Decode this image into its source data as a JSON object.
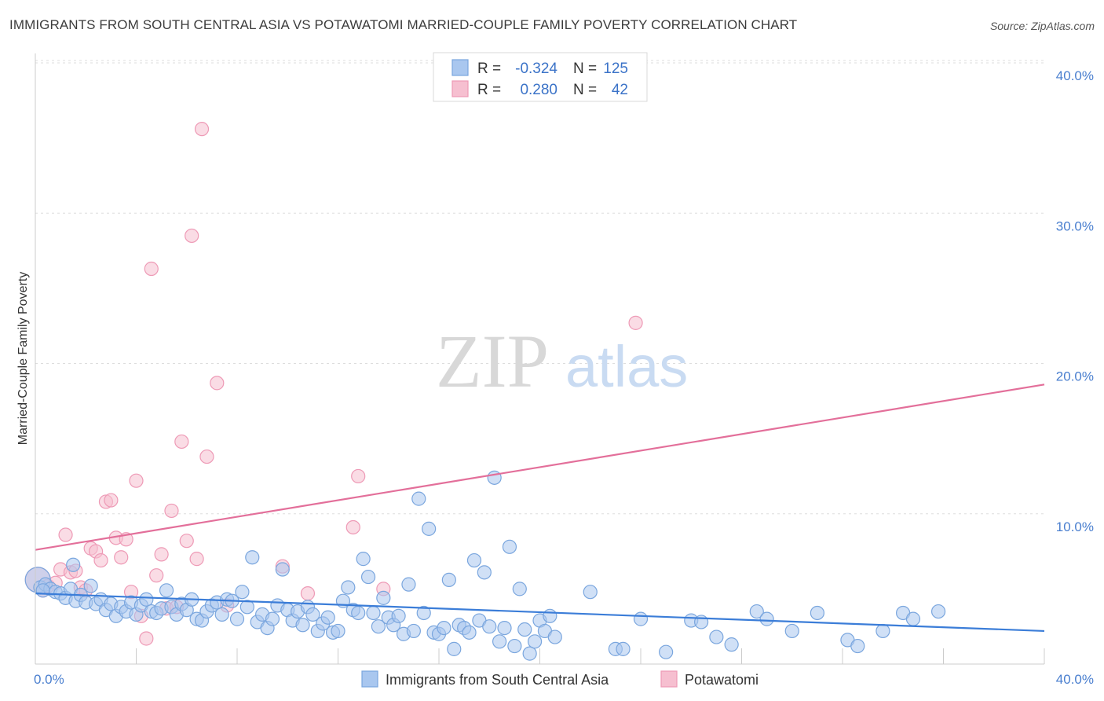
{
  "title": "IMMIGRANTS FROM SOUTH CENTRAL ASIA VS POTAWATOMI MARRIED-COUPLE FAMILY POVERTY CORRELATION CHART",
  "source": "Source: ZipAtlas.com",
  "watermark": {
    "zip": "ZIP",
    "atlas": "atlas"
  },
  "colors": {
    "blue_fill": "#a9c7ef",
    "blue_stroke": "#7aa6de",
    "blue_line": "#3b7dd8",
    "pink_fill": "#f6bfd0",
    "pink_stroke": "#ee9ab6",
    "pink_line": "#e36f9a",
    "grid": "#dddddd",
    "tick_text": "#4a7fcf"
  },
  "stats_legend": [
    {
      "r_label": "R =",
      "r_value": "-0.324",
      "n_label": "N =",
      "n_value": "125",
      "color": "blue"
    },
    {
      "r_label": "R =",
      "r_value": "0.280",
      "n_label": "N =",
      "n_value": "42",
      "color": "pink"
    }
  ],
  "chart_data": {
    "type": "scatter",
    "ylabel": "Married-Couple Family Poverty",
    "xlim": [
      0,
      40
    ],
    "ylim": [
      0,
      40
    ],
    "y_ticks": [
      10,
      20,
      30,
      40
    ],
    "y_tick_labels": [
      "10.0%",
      "20.0%",
      "30.0%",
      "40.0%"
    ],
    "x_tick_labels": [
      "0.0%",
      "40.0%"
    ],
    "grid": "horizontal dashed",
    "legend_placement": "top-center",
    "series": [
      {
        "name": "Immigrants from South Central Asia",
        "color": "blue",
        "trend": {
          "x": [
            0,
            40
          ],
          "y": [
            4.7,
            2.2
          ]
        },
        "points": [
          [
            0.1,
            5.6
          ],
          [
            0.2,
            5.1
          ],
          [
            0.4,
            5.3
          ],
          [
            0.6,
            5.0
          ],
          [
            0.8,
            4.8
          ],
          [
            1.0,
            4.7
          ],
          [
            1.2,
            4.4
          ],
          [
            1.4,
            5.0
          ],
          [
            1.6,
            4.2
          ],
          [
            1.8,
            4.6
          ],
          [
            2.0,
            4.1
          ],
          [
            2.2,
            5.2
          ],
          [
            2.4,
            4.0
          ],
          [
            2.6,
            4.3
          ],
          [
            2.8,
            3.6
          ],
          [
            3.0,
            4.0
          ],
          [
            3.2,
            3.2
          ],
          [
            3.4,
            3.8
          ],
          [
            3.6,
            3.5
          ],
          [
            3.8,
            4.1
          ],
          [
            4.0,
            3.3
          ],
          [
            4.2,
            3.9
          ],
          [
            4.4,
            4.3
          ],
          [
            4.6,
            3.5
          ],
          [
            4.8,
            3.4
          ],
          [
            5.0,
            3.7
          ],
          [
            5.2,
            4.9
          ],
          [
            5.4,
            3.8
          ],
          [
            5.6,
            3.3
          ],
          [
            5.8,
            4.0
          ],
          [
            6.0,
            3.6
          ],
          [
            6.2,
            4.3
          ],
          [
            6.4,
            3.0
          ],
          [
            6.6,
            2.9
          ],
          [
            6.8,
            3.5
          ],
          [
            7.0,
            3.9
          ],
          [
            7.2,
            4.1
          ],
          [
            7.4,
            3.3
          ],
          [
            7.6,
            4.3
          ],
          [
            7.8,
            4.2
          ],
          [
            8.0,
            3.0
          ],
          [
            8.2,
            4.8
          ],
          [
            8.4,
            3.8
          ],
          [
            8.6,
            7.1
          ],
          [
            8.8,
            2.8
          ],
          [
            9.0,
            3.3
          ],
          [
            9.2,
            2.4
          ],
          [
            9.4,
            3.0
          ],
          [
            9.6,
            3.9
          ],
          [
            9.8,
            6.3
          ],
          [
            10.0,
            3.6
          ],
          [
            10.2,
            2.9
          ],
          [
            10.4,
            3.5
          ],
          [
            10.6,
            2.6
          ],
          [
            10.8,
            3.8
          ],
          [
            11.0,
            3.3
          ],
          [
            11.2,
            2.2
          ],
          [
            11.4,
            2.7
          ],
          [
            11.6,
            3.1
          ],
          [
            11.8,
            2.1
          ],
          [
            12.0,
            2.2
          ],
          [
            12.2,
            4.2
          ],
          [
            12.4,
            5.1
          ],
          [
            12.6,
            3.6
          ],
          [
            12.8,
            3.4
          ],
          [
            13.0,
            7.0
          ],
          [
            13.2,
            5.8
          ],
          [
            13.4,
            3.4
          ],
          [
            13.6,
            2.5
          ],
          [
            13.8,
            4.4
          ],
          [
            14.0,
            3.1
          ],
          [
            14.2,
            2.6
          ],
          [
            14.4,
            3.2
          ],
          [
            14.6,
            2.0
          ],
          [
            14.8,
            5.3
          ],
          [
            15.0,
            2.2
          ],
          [
            15.2,
            11.0
          ],
          [
            15.4,
            3.4
          ],
          [
            15.6,
            9.0
          ],
          [
            15.8,
            2.1
          ],
          [
            16.0,
            2.0
          ],
          [
            16.2,
            2.4
          ],
          [
            16.4,
            5.6
          ],
          [
            16.6,
            1.0
          ],
          [
            16.8,
            2.6
          ],
          [
            17.0,
            2.4
          ],
          [
            17.2,
            2.1
          ],
          [
            17.4,
            6.9
          ],
          [
            17.6,
            2.9
          ],
          [
            17.8,
            6.1
          ],
          [
            18.0,
            2.5
          ],
          [
            18.2,
            12.4
          ],
          [
            18.4,
            1.5
          ],
          [
            18.6,
            2.4
          ],
          [
            18.8,
            7.8
          ],
          [
            19.0,
            1.2
          ],
          [
            19.2,
            5.0
          ],
          [
            19.4,
            2.3
          ],
          [
            19.6,
            0.7
          ],
          [
            19.8,
            1.5
          ],
          [
            20.0,
            2.9
          ],
          [
            20.2,
            2.2
          ],
          [
            20.4,
            3.2
          ],
          [
            20.6,
            1.8
          ],
          [
            22.0,
            4.8
          ],
          [
            23.0,
            1.0
          ],
          [
            23.3,
            1.0
          ],
          [
            24.0,
            3.0
          ],
          [
            25.0,
            0.8
          ],
          [
            26.0,
            2.9
          ],
          [
            26.4,
            2.8
          ],
          [
            27.0,
            1.8
          ],
          [
            27.6,
            1.3
          ],
          [
            28.6,
            3.5
          ],
          [
            29.0,
            3.0
          ],
          [
            30.0,
            2.2
          ],
          [
            31.0,
            3.4
          ],
          [
            32.2,
            1.6
          ],
          [
            32.6,
            1.2
          ],
          [
            33.6,
            2.2
          ],
          [
            34.4,
            3.4
          ],
          [
            34.8,
            3.0
          ],
          [
            35.8,
            3.5
          ],
          [
            0.3,
            4.9
          ],
          [
            1.5,
            6.6
          ]
        ]
      },
      {
        "name": "Potawatomi",
        "color": "pink",
        "trend": {
          "x": [
            0,
            40
          ],
          "y": [
            7.6,
            18.6
          ]
        },
        "points": [
          [
            0.1,
            5.6
          ],
          [
            0.3,
            4.9
          ],
          [
            0.5,
            5.2
          ],
          [
            0.8,
            5.4
          ],
          [
            1.0,
            6.3
          ],
          [
            1.2,
            8.6
          ],
          [
            1.4,
            6.1
          ],
          [
            1.6,
            6.2
          ],
          [
            1.8,
            5.1
          ],
          [
            2.0,
            4.9
          ],
          [
            2.2,
            7.7
          ],
          [
            2.4,
            7.5
          ],
          [
            2.6,
            6.9
          ],
          [
            2.8,
            10.8
          ],
          [
            3.0,
            10.9
          ],
          [
            3.2,
            8.4
          ],
          [
            3.4,
            7.1
          ],
          [
            3.6,
            8.3
          ],
          [
            3.8,
            4.8
          ],
          [
            4.0,
            12.2
          ],
          [
            4.2,
            3.2
          ],
          [
            4.4,
            1.7
          ],
          [
            4.6,
            26.3
          ],
          [
            4.8,
            5.9
          ],
          [
            5.0,
            7.3
          ],
          [
            5.2,
            3.7
          ],
          [
            5.4,
            10.2
          ],
          [
            5.6,
            3.8
          ],
          [
            5.8,
            14.8
          ],
          [
            6.0,
            8.2
          ],
          [
            6.2,
            28.5
          ],
          [
            6.4,
            7.0
          ],
          [
            6.6,
            35.6
          ],
          [
            6.8,
            13.8
          ],
          [
            7.2,
            18.7
          ],
          [
            7.6,
            3.9
          ],
          [
            9.8,
            6.5
          ],
          [
            10.8,
            4.7
          ],
          [
            12.6,
            9.1
          ],
          [
            12.8,
            12.5
          ],
          [
            13.8,
            5.0
          ],
          [
            23.8,
            22.7
          ]
        ]
      }
    ]
  },
  "bottom_legend": [
    {
      "label": "Immigrants from South Central Asia",
      "color": "blue"
    },
    {
      "label": "Potawatomi",
      "color": "pink"
    }
  ]
}
